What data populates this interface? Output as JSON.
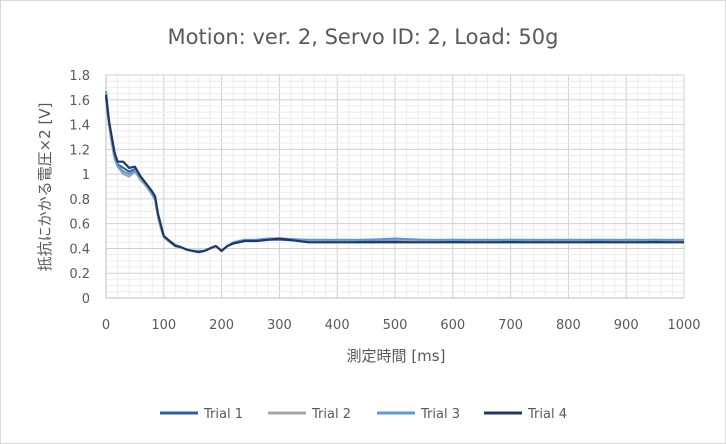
{
  "chart_data": {
    "type": "line",
    "title": "Motion: ver. 2, Servo ID: 2, Load: 50g",
    "xlabel": "測定時間 [ms]",
    "ylabel": "抵抗にかかる電圧×2 [V]",
    "xlim": [
      0,
      1000
    ],
    "ylim": [
      0,
      1.8
    ],
    "x_ticks": [
      "0",
      "100",
      "200",
      "300",
      "400",
      "500",
      "600",
      "700",
      "800",
      "900",
      "1000"
    ],
    "y_ticks": [
      "0",
      "0.2",
      "0.4",
      "0.6",
      "0.8",
      "1",
      "1.2",
      "1.4",
      "1.6",
      "1.8"
    ],
    "grid": true,
    "legend_position": "bottom",
    "x": [
      0,
      5,
      10,
      15,
      20,
      30,
      40,
      50,
      60,
      70,
      80,
      85,
      90,
      95,
      100,
      110,
      120,
      130,
      140,
      150,
      160,
      170,
      180,
      190,
      200,
      210,
      220,
      230,
      240,
      260,
      280,
      300,
      350,
      400,
      450,
      500,
      550,
      600,
      650,
      700,
      750,
      800,
      850,
      900,
      950,
      1000
    ],
    "series": [
      {
        "name": "Trial 1",
        "color": "#2e5ea9",
        "values": [
          1.62,
          1.42,
          1.28,
          1.15,
          1.08,
          1.05,
          1.02,
          1.04,
          0.96,
          0.9,
          0.84,
          0.8,
          0.66,
          0.58,
          0.5,
          0.46,
          0.42,
          0.41,
          0.39,
          0.38,
          0.38,
          0.38,
          0.4,
          0.42,
          0.38,
          0.42,
          0.44,
          0.45,
          0.46,
          0.46,
          0.47,
          0.47,
          0.46,
          0.46,
          0.46,
          0.46,
          0.46,
          0.46,
          0.46,
          0.46,
          0.46,
          0.46,
          0.46,
          0.46,
          0.46,
          0.46
        ]
      },
      {
        "name": "Trial 2",
        "color": "#a5a5a5",
        "values": [
          1.6,
          1.4,
          1.24,
          1.12,
          1.06,
          1.0,
          0.98,
          1.02,
          0.95,
          0.9,
          0.83,
          0.79,
          0.65,
          0.56,
          0.49,
          0.45,
          0.42,
          0.41,
          0.39,
          0.38,
          0.37,
          0.38,
          0.4,
          0.42,
          0.38,
          0.42,
          0.44,
          0.46,
          0.47,
          0.46,
          0.47,
          0.48,
          0.46,
          0.46,
          0.47,
          0.47,
          0.46,
          0.47,
          0.46,
          0.47,
          0.46,
          0.46,
          0.47,
          0.46,
          0.47,
          0.46
        ]
      },
      {
        "name": "Trial 3",
        "color": "#5b9bd5",
        "values": [
          1.67,
          1.45,
          1.27,
          1.13,
          1.07,
          1.02,
          1.0,
          1.03,
          0.97,
          0.91,
          0.84,
          0.8,
          0.67,
          0.57,
          0.5,
          0.46,
          0.43,
          0.41,
          0.39,
          0.38,
          0.38,
          0.38,
          0.4,
          0.42,
          0.38,
          0.42,
          0.45,
          0.46,
          0.47,
          0.47,
          0.48,
          0.48,
          0.47,
          0.47,
          0.47,
          0.48,
          0.47,
          0.47,
          0.47,
          0.47,
          0.47,
          0.47,
          0.47,
          0.47,
          0.47,
          0.47
        ]
      },
      {
        "name": "Trial 4",
        "color": "#1f3864",
        "values": [
          1.64,
          1.43,
          1.3,
          1.17,
          1.1,
          1.1,
          1.05,
          1.06,
          0.98,
          0.92,
          0.86,
          0.82,
          0.68,
          0.59,
          0.5,
          0.46,
          0.42,
          0.41,
          0.39,
          0.38,
          0.37,
          0.38,
          0.4,
          0.42,
          0.38,
          0.42,
          0.44,
          0.45,
          0.46,
          0.46,
          0.47,
          0.48,
          0.45,
          0.45,
          0.45,
          0.45,
          0.45,
          0.45,
          0.45,
          0.45,
          0.45,
          0.45,
          0.45,
          0.45,
          0.45,
          0.45
        ]
      }
    ]
  }
}
